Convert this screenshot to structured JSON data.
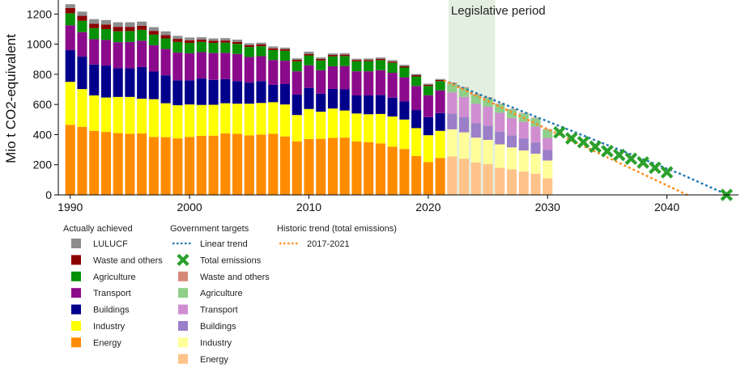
{
  "chart_data": {
    "type": "bar",
    "stacked": true,
    "ylabel": "Mio t CO2-equivalent",
    "ylim": [
      0,
      1250
    ],
    "xlim": [
      1989,
      2046
    ],
    "x_ticks": [
      1990,
      2000,
      2010,
      2020,
      2030,
      2040
    ],
    "y_ticks": [
      0,
      200,
      400,
      600,
      800,
      1000,
      1200
    ],
    "grid": false,
    "annotation": {
      "text": "Legislative period",
      "x_from": 2021.7,
      "x_to": 2025.6,
      "color": "#e3efe0"
    },
    "legend_placement": "below",
    "legend_groups": [
      {
        "title": "Actually achieved",
        "entries": [
          {
            "label": "LULUCF",
            "marker": "square",
            "color": "#8c8c8c"
          },
          {
            "label": "Waste and others",
            "marker": "square",
            "color": "#8b0000"
          },
          {
            "label": "Agriculture",
            "marker": "square",
            "color": "#079107"
          },
          {
            "label": "Transport",
            "marker": "square",
            "color": "#8b0a8b"
          },
          {
            "label": "Buildings",
            "marker": "square",
            "color": "#00008b"
          },
          {
            "label": "Industry",
            "marker": "square",
            "color": "#ffff00"
          },
          {
            "label": "Energy",
            "marker": "square",
            "color": "#ff8c00"
          }
        ]
      },
      {
        "title": "Government targets",
        "entries": [
          {
            "label": "Linear trend",
            "marker": "dotted-line",
            "color": "#1f77b4"
          },
          {
            "label": "Total emissions",
            "marker": "x",
            "color": "#2ca02c"
          },
          {
            "label": "Waste and others",
            "marker": "square",
            "color": "#d8897a"
          },
          {
            "label": "Agriculture",
            "marker": "square",
            "color": "#8fcf8a"
          },
          {
            "label": "Transport",
            "marker": "square",
            "color": "#d08ed0"
          },
          {
            "label": "Buildings",
            "marker": "square",
            "color": "#9b7fc9"
          },
          {
            "label": "Industry",
            "marker": "square",
            "color": "#ffff99"
          },
          {
            "label": "Energy",
            "marker": "square",
            "color": "#ffc38a"
          }
        ]
      },
      {
        "title": "Historic trend (total emissions)",
        "entries": [
          {
            "label": "2017-2021",
            "marker": "dotted-line",
            "color": "#ff8c1a"
          }
        ]
      }
    ],
    "historic_series_order": [
      "Energy",
      "Industry",
      "Buildings",
      "Transport",
      "Agriculture",
      "Waste and others",
      "LULUCF"
    ],
    "historic": [
      {
        "year": 1990,
        "values": [
          465,
          285,
          210,
          165,
          80,
          35,
          25
        ]
      },
      {
        "year": 1991,
        "values": [
          452,
          250,
          215,
          163,
          75,
          33,
          28
        ]
      },
      {
        "year": 1992,
        "values": [
          425,
          235,
          205,
          168,
          73,
          30,
          30
        ]
      },
      {
        "year": 1993,
        "values": [
          418,
          228,
          212,
          170,
          72,
          30,
          30
        ]
      },
      {
        "year": 1994,
        "values": [
          410,
          240,
          190,
          173,
          72,
          30,
          30
        ]
      },
      {
        "year": 1995,
        "values": [
          405,
          245,
          190,
          175,
          72,
          28,
          30
        ]
      },
      {
        "year": 1996,
        "values": [
          408,
          230,
          210,
          175,
          72,
          27,
          28
        ]
      },
      {
        "year": 1997,
        "values": [
          385,
          250,
          183,
          175,
          70,
          25,
          25
        ]
      },
      {
        "year": 1998,
        "values": [
          383,
          225,
          185,
          175,
          70,
          22,
          25
        ]
      },
      {
        "year": 1999,
        "values": [
          375,
          220,
          165,
          185,
          70,
          20,
          20
        ]
      },
      {
        "year": 2000,
        "values": [
          385,
          215,
          160,
          180,
          68,
          18,
          18
        ]
      },
      {
        "year": 2001,
        "values": [
          392,
          205,
          175,
          175,
          68,
          16,
          15
        ]
      },
      {
        "year": 2002,
        "values": [
          393,
          205,
          165,
          178,
          67,
          15,
          15
        ]
      },
      {
        "year": 2003,
        "values": [
          408,
          200,
          160,
          175,
          67,
          14,
          16
        ]
      },
      {
        "year": 2004,
        "values": [
          405,
          200,
          150,
          180,
          67,
          13,
          15
        ]
      },
      {
        "year": 2005,
        "values": [
          395,
          210,
          140,
          170,
          66,
          12,
          13
        ]
      },
      {
        "year": 2006,
        "values": [
          400,
          210,
          145,
          165,
          66,
          12,
          12
        ]
      },
      {
        "year": 2007,
        "values": [
          405,
          210,
          115,
          165,
          66,
          11,
          13
        ]
      },
      {
        "year": 2008,
        "values": [
          388,
          212,
          135,
          155,
          66,
          11,
          10
        ]
      },
      {
        "year": 2009,
        "values": [
          355,
          175,
          135,
          155,
          66,
          10,
          10
        ]
      },
      {
        "year": 2010,
        "values": [
          370,
          200,
          140,
          150,
          65,
          10,
          15
        ]
      },
      {
        "year": 2011,
        "values": [
          372,
          180,
          120,
          155,
          65,
          10,
          10
        ]
      },
      {
        "year": 2012,
        "values": [
          378,
          195,
          130,
          150,
          66,
          9,
          10
        ]
      },
      {
        "year": 2013,
        "values": [
          380,
          180,
          140,
          155,
          66,
          9,
          10
        ]
      },
      {
        "year": 2014,
        "values": [
          355,
          185,
          120,
          160,
          66,
          9,
          8
        ]
      },
      {
        "year": 2015,
        "values": [
          350,
          185,
          125,
          160,
          67,
          8,
          10
        ]
      },
      {
        "year": 2016,
        "values": [
          342,
          195,
          125,
          165,
          67,
          8,
          10
        ]
      },
      {
        "year": 2017,
        "values": [
          320,
          200,
          125,
          165,
          66,
          8,
          10
        ]
      },
      {
        "year": 2018,
        "values": [
          305,
          195,
          120,
          160,
          65,
          8,
          10
        ]
      },
      {
        "year": 2019,
        "values": [
          258,
          185,
          120,
          160,
          63,
          8,
          8
        ]
      },
      {
        "year": 2020,
        "values": [
          218,
          178,
          120,
          145,
          62,
          7,
          8
        ]
      },
      {
        "year": 2021,
        "values": [
          245,
          180,
          118,
          150,
          62,
          7,
          7
        ]
      }
    ],
    "target_series_order": [
      "Energy",
      "Industry",
      "Buildings",
      "Transport",
      "Agriculture",
      "Waste and others"
    ],
    "targets": [
      {
        "year": 2022,
        "values": [
          255,
          180,
          105,
          140,
          60,
          6
        ]
      },
      {
        "year": 2023,
        "values": [
          240,
          175,
          100,
          135,
          60,
          5
        ]
      },
      {
        "year": 2024,
        "values": [
          215,
          165,
          95,
          130,
          58,
          5
        ]
      },
      {
        "year": 2025,
        "values": [
          205,
          160,
          95,
          125,
          58,
          5
        ]
      },
      {
        "year": 2026,
        "values": [
          180,
          155,
          85,
          125,
          57,
          4
        ]
      },
      {
        "year": 2027,
        "values": [
          170,
          145,
          80,
          115,
          56,
          4
        ]
      },
      {
        "year": 2028,
        "values": [
          155,
          140,
          80,
          110,
          55,
          4
        ]
      },
      {
        "year": 2029,
        "values": [
          140,
          133,
          75,
          105,
          55,
          4
        ]
      },
      {
        "year": 2030,
        "values": [
          110,
          118,
          70,
          80,
          55,
          4
        ]
      }
    ],
    "total_emissions_target": [
      {
        "year": 2031,
        "value": 415
      },
      {
        "year": 2032,
        "value": 375
      },
      {
        "year": 2033,
        "value": 350
      },
      {
        "year": 2034,
        "value": 320
      },
      {
        "year": 2035,
        "value": 290
      },
      {
        "year": 2036,
        "value": 265
      },
      {
        "year": 2037,
        "value": 240
      },
      {
        "year": 2038,
        "value": 215
      },
      {
        "year": 2039,
        "value": 180
      },
      {
        "year": 2040,
        "value": 150
      },
      {
        "year": 2045,
        "value": 0
      }
    ],
    "linear_trend": {
      "x": [
        2021.3,
        2041.1,
        2045.1
      ],
      "y": [
        760,
        140,
        0
      ]
    },
    "historic_trend_2017_2021": {
      "x": [
        2021.3,
        2041.7
      ],
      "y": [
        760,
        0
      ]
    }
  }
}
